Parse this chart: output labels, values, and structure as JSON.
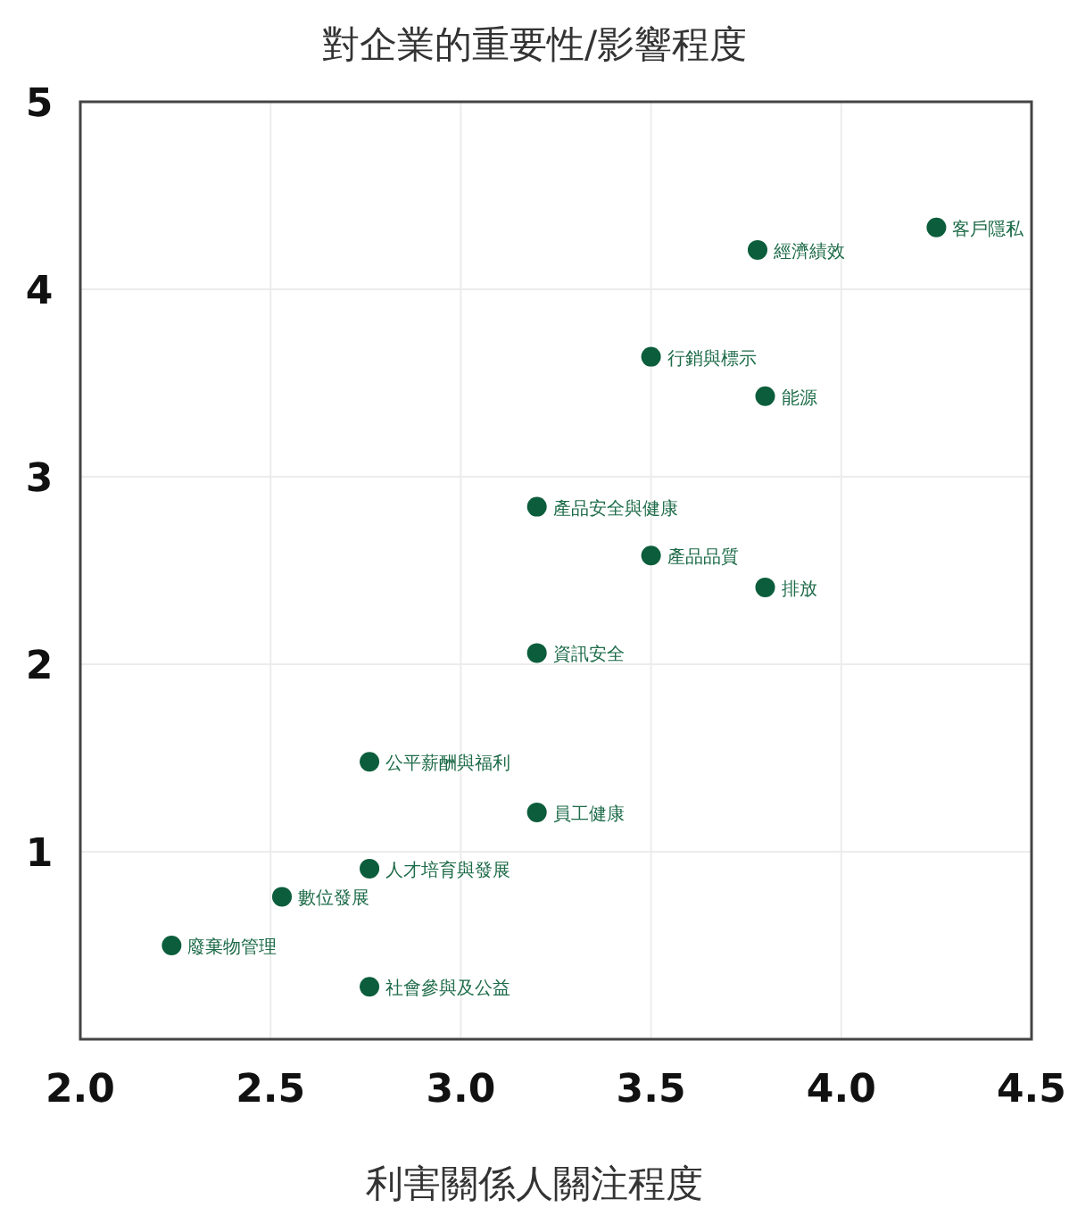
{
  "chart_data": {
    "type": "scatter",
    "title": "對企業的重要性/影響程度",
    "xlabel": "利害關係人關注程度",
    "x": [
      4.25,
      3.78,
      3.5,
      3.8,
      3.2,
      3.5,
      3.8,
      3.2,
      2.76,
      3.2,
      2.76,
      2.53,
      2.24,
      2.76
    ],
    "series": [
      {
        "color": "#0b5d3b",
        "values": [
          4.33,
          4.21,
          3.64,
          3.43,
          2.84,
          2.58,
          2.41,
          2.06,
          1.48,
          1.21,
          0.91,
          0.76,
          0.5,
          0.28
        ]
      }
    ],
    "annotations": [
      {
        "text": "客戶隱私",
        "x": 4.25,
        "y": 4.33
      },
      {
        "text": "經濟績效",
        "x": 3.78,
        "y": 4.21
      },
      {
        "text": "行銷與標示",
        "x": 3.5,
        "y": 3.64
      },
      {
        "text": "能源",
        "x": 3.8,
        "y": 3.43
      },
      {
        "text": "產品安全與健康",
        "x": 3.2,
        "y": 2.84
      },
      {
        "text": "產品品質",
        "x": 3.5,
        "y": 2.58
      },
      {
        "text": "排放",
        "x": 3.8,
        "y": 2.41
      },
      {
        "text": "資訊安全",
        "x": 3.2,
        "y": 2.06
      },
      {
        "text": "公平薪酬與福利",
        "x": 2.76,
        "y": 1.48
      },
      {
        "text": "員工健康",
        "x": 3.2,
        "y": 1.21
      },
      {
        "text": "人才培育與發展",
        "x": 2.76,
        "y": 0.91
      },
      {
        "text": "數位發展",
        "x": 2.53,
        "y": 0.76
      },
      {
        "text": "廢棄物管理",
        "x": 2.24,
        "y": 0.5
      },
      {
        "text": "社會參與及公益",
        "x": 2.76,
        "y": 0.28
      }
    ],
    "xlim": [
      2.0,
      4.5
    ],
    "ylim": [
      0,
      5
    ],
    "xticks": [
      {
        "value": 2,
        "label": "2.0"
      },
      {
        "value": 2.5,
        "label": "2.5"
      },
      {
        "value": 3,
        "label": "3.0"
      },
      {
        "value": 3.5,
        "label": "3.5"
      },
      {
        "value": 4,
        "label": "4.0"
      },
      {
        "value": 4.5,
        "label": "4.5"
      }
    ],
    "yticks": [
      1,
      2,
      3,
      4,
      5
    ],
    "grid": true,
    "marker": "circle"
  }
}
